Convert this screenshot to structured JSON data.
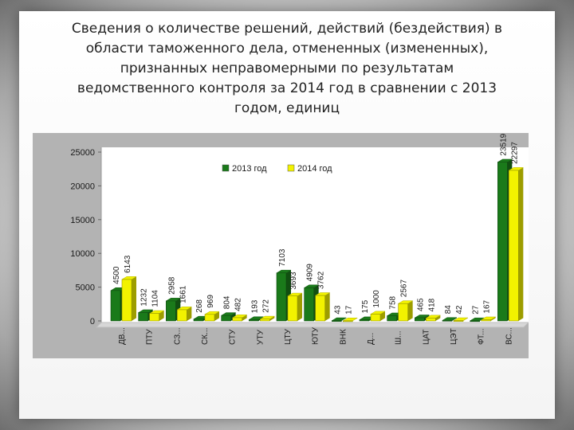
{
  "title_lines": [
    "Сведения о количестве решений, действий (бездействия) в",
    "области таможенного дела, отмененных (измененных),",
    "признанных неправомерными по результатам",
    "ведомственного контроля за 2014 год в сравнении с 2013",
    "годом, единиц"
  ],
  "chart_data": {
    "type": "bar",
    "categories": [
      "ДВ...",
      "ПТУ",
      "СЗ...",
      "СК...",
      "СТУ",
      "УТУ",
      "ЦТУ",
      "ЮТУ",
      "ВНК",
      "Д...",
      "Ш...",
      "ЦАТ",
      "ЦЭТ",
      "ФТ...",
      "ВС..."
    ],
    "series": [
      {
        "name": "2013 год",
        "color": "#1a7a1a",
        "values": [
          4500,
          1232,
          2958,
          268,
          804,
          193,
          7103,
          4909,
          43,
          175,
          758,
          465,
          84,
          27,
          23519
        ]
      },
      {
        "name": "2014 год",
        "color": "#f2f200",
        "values": [
          6143,
          1104,
          1661,
          969,
          482,
          272,
          3693,
          3762,
          17,
          1000,
          2567,
          418,
          42,
          167,
          22297
        ]
      }
    ],
    "ylim": [
      0,
      25000
    ],
    "yticks": [
      0,
      5000,
      10000,
      15000,
      20000,
      25000
    ],
    "legend_position": "top-center",
    "grid": false
  }
}
